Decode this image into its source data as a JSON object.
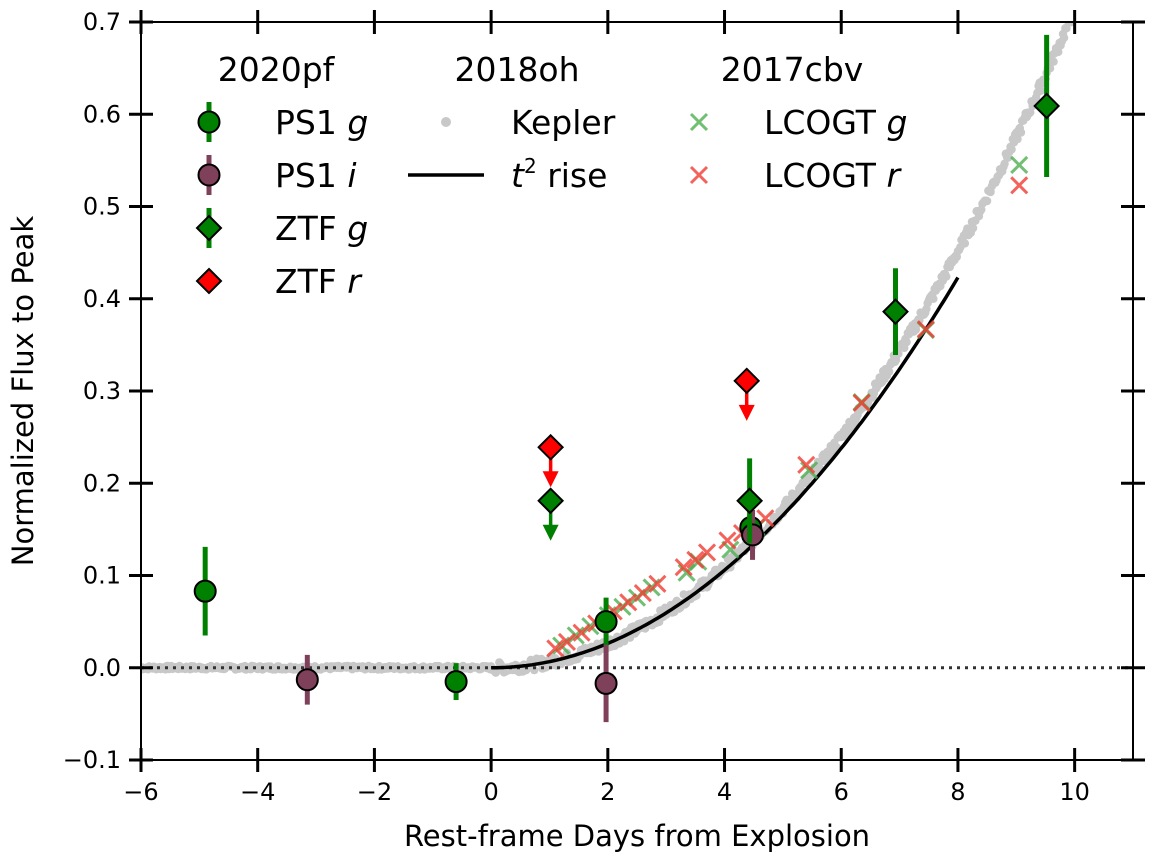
{
  "chart_data": {
    "type": "scatter",
    "title": "",
    "xlabel": "Rest-frame Days from Explosion",
    "ylabel": "Normalized Flux to Peak",
    "xlim": [
      -6,
      11
    ],
    "ylim": [
      -0.1,
      0.7
    ],
    "x_ticks": [
      -6,
      -4,
      -2,
      0,
      2,
      4,
      6,
      8,
      10
    ],
    "x_tick_labels": [
      "−6",
      "−4",
      "−2",
      "0",
      "2",
      "4",
      "6",
      "8",
      "10"
    ],
    "y_ticks": [
      -0.1,
      0.0,
      0.1,
      0.2,
      0.3,
      0.4,
      0.5,
      0.6,
      0.7
    ],
    "y_tick_labels": [
      "−0.1",
      "0.0",
      "0.1",
      "0.2",
      "0.3",
      "0.4",
      "0.5",
      "0.6",
      "0.7"
    ],
    "grid": false,
    "zero_line": {
      "y": 0.0,
      "style": "dotted",
      "color": "#333333"
    },
    "legend": {
      "placement": "top-left",
      "groups": [
        {
          "title": "2020pf",
          "entries": [
            {
              "key": "ps1g",
              "label": "PS1",
              "band": "g"
            },
            {
              "key": "ps1i",
              "label": "PS1",
              "band": "i"
            },
            {
              "key": "ztfg",
              "label": "ZTF",
              "band": "g"
            },
            {
              "key": "ztfr",
              "label": "ZTF",
              "band": "r"
            }
          ]
        },
        {
          "title": "2018oh",
          "entries": [
            {
              "key": "kepler",
              "label": "Kepler",
              "band": ""
            },
            {
              "key": "t2",
              "label": "rise",
              "band": "t",
              "superscript": "2"
            }
          ]
        },
        {
          "title": "2017cbv",
          "entries": [
            {
              "key": "lcogtg",
              "label": "LCOGT",
              "band": "g"
            },
            {
              "key": "lcogtr",
              "label": "LCOGT",
              "band": "r"
            }
          ]
        }
      ]
    },
    "series": [
      {
        "key": "ps1g",
        "name": "PS1 g",
        "marker": "circle",
        "color": "#008000",
        "points": [
          {
            "x": -4.9,
            "y": 0.083,
            "err": 0.048
          },
          {
            "x": -0.6,
            "y": -0.015,
            "err": 0.02
          },
          {
            "x": 1.97,
            "y": 0.05,
            "err": 0.026
          },
          {
            "x": 4.45,
            "y": 0.152,
            "err": 0.015
          }
        ]
      },
      {
        "key": "ps1i",
        "name": "PS1 i",
        "marker": "circle",
        "color": "#7f4059",
        "points": [
          {
            "x": -3.15,
            "y": -0.013,
            "err": 0.027
          },
          {
            "x": 1.97,
            "y": -0.017,
            "err": 0.042
          },
          {
            "x": 4.48,
            "y": 0.144,
            "err": 0.027
          }
        ]
      },
      {
        "key": "ztfg",
        "name": "ZTF g",
        "marker": "diamond",
        "color": "#008000",
        "points": [
          {
            "x": 1.02,
            "y": 0.181,
            "upper_limit": true
          },
          {
            "x": 4.43,
            "y": 0.181,
            "err": 0.046
          },
          {
            "x": 6.93,
            "y": 0.386,
            "err": 0.047
          },
          {
            "x": 9.52,
            "y": 0.609,
            "err": 0.077
          }
        ]
      },
      {
        "key": "ztfr",
        "name": "ZTF r",
        "marker": "diamond",
        "color": "#ff0000",
        "points": [
          {
            "x": 1.02,
            "y": 0.239,
            "upper_limit": true
          },
          {
            "x": 4.38,
            "y": 0.311,
            "upper_limit": true
          }
        ]
      },
      {
        "key": "lcogtg",
        "name": "LCOGT g",
        "marker": "x",
        "color": "#4caf50",
        "points": [
          {
            "x": 1.2,
            "y": 0.024
          },
          {
            "x": 1.45,
            "y": 0.035
          },
          {
            "x": 1.7,
            "y": 0.045
          },
          {
            "x": 2.0,
            "y": 0.057
          },
          {
            "x": 2.25,
            "y": 0.066
          },
          {
            "x": 2.5,
            "y": 0.076
          },
          {
            "x": 2.75,
            "y": 0.087
          },
          {
            "x": 3.35,
            "y": 0.103
          },
          {
            "x": 3.55,
            "y": 0.115
          },
          {
            "x": 4.1,
            "y": 0.128
          },
          {
            "x": 4.55,
            "y": 0.152
          },
          {
            "x": 5.45,
            "y": 0.214
          },
          {
            "x": 6.35,
            "y": 0.288
          },
          {
            "x": 7.45,
            "y": 0.366
          },
          {
            "x": 9.05,
            "y": 0.545
          }
        ]
      },
      {
        "key": "lcogtr",
        "name": "LCOGT r",
        "marker": "x",
        "color": "#f03c32",
        "points": [
          {
            "x": 1.1,
            "y": 0.021
          },
          {
            "x": 1.3,
            "y": 0.028
          },
          {
            "x": 1.55,
            "y": 0.038
          },
          {
            "x": 1.8,
            "y": 0.048
          },
          {
            "x": 2.1,
            "y": 0.061
          },
          {
            "x": 2.35,
            "y": 0.071
          },
          {
            "x": 2.6,
            "y": 0.081
          },
          {
            "x": 2.85,
            "y": 0.091
          },
          {
            "x": 3.3,
            "y": 0.109
          },
          {
            "x": 3.5,
            "y": 0.117
          },
          {
            "x": 3.7,
            "y": 0.125
          },
          {
            "x": 4.05,
            "y": 0.138
          },
          {
            "x": 4.3,
            "y": 0.146
          },
          {
            "x": 4.7,
            "y": 0.162
          },
          {
            "x": 5.4,
            "y": 0.22
          },
          {
            "x": 6.35,
            "y": 0.287
          },
          {
            "x": 7.45,
            "y": 0.367
          },
          {
            "x": 9.05,
            "y": 0.523
          }
        ]
      }
    ],
    "kepler": {
      "name": "Kepler",
      "color": "#c8c8c8",
      "pre_explosion_level": 0.0,
      "x_range": [
        -6,
        10.9
      ],
      "rise_coefficient": 0.00636,
      "rise_exponent": 2.05
    },
    "t2_rise": {
      "name": "t^2 rise",
      "color": "#000000",
      "x_range": [
        0,
        8
      ],
      "coefficient": 0.00661
    }
  }
}
